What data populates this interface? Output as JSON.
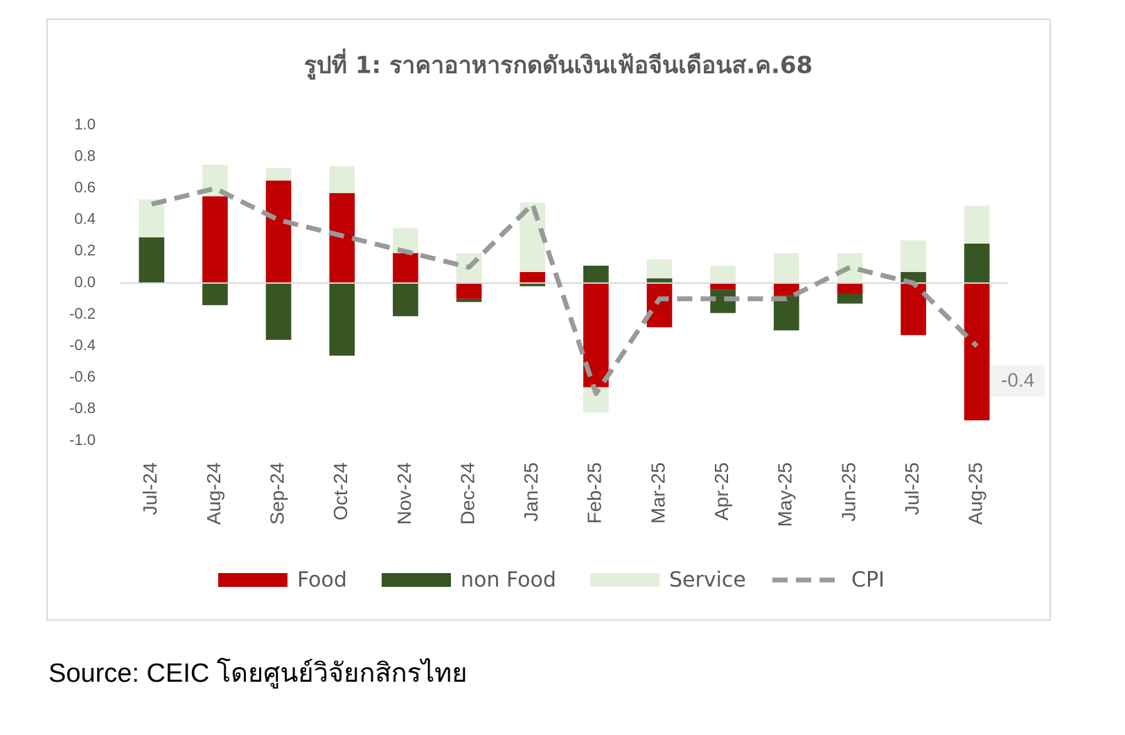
{
  "chart_data": {
    "type": "stacked-bar-line",
    "title": "รูปที่ 1: ราคาอาหารกดดันเงินเฟ้อจีนเดือนส.ค.68",
    "source": "Source: CEIC โดยศูนย์วิจัยกสิกรไทย",
    "categories": [
      "Jul-24",
      "Aug-24",
      "Sep-24",
      "Oct-24",
      "Nov-24",
      "Dec-24",
      "Jan-25",
      "Feb-25",
      "Mar-25",
      "Apr-25",
      "May-25",
      "Jun-25",
      "Jul-25",
      "Aug-25"
    ],
    "series": [
      {
        "name": "Food",
        "type": "bar",
        "color": "#c00000",
        "values": [
          0,
          0.55,
          0.65,
          0.57,
          0.19,
          -0.1,
          0.07,
          -0.66,
          -0.28,
          -0.04,
          -0.08,
          -0.07,
          -0.33,
          -0.87
        ]
      },
      {
        "name": "non Food",
        "type": "bar",
        "color": "#375623",
        "values": [
          0.29,
          -0.14,
          -0.36,
          -0.46,
          -0.21,
          -0.02,
          -0.02,
          0.11,
          0.03,
          -0.15,
          -0.22,
          -0.06,
          0.07,
          0.25
        ]
      },
      {
        "name": "Service",
        "type": "bar",
        "color": "#e2efda",
        "values": [
          0.24,
          0.2,
          0.08,
          0.17,
          0.16,
          0.19,
          0.44,
          -0.16,
          0.12,
          0.11,
          0.19,
          0.19,
          0.2,
          0.24
        ]
      },
      {
        "name": "CPI",
        "type": "line",
        "color": "#999999",
        "dashed": true,
        "values": [
          0.5,
          0.6,
          0.4,
          0.3,
          0.2,
          0.1,
          0.5,
          -0.7,
          -0.1,
          -0.1,
          -0.1,
          0.1,
          0,
          -0.4
        ],
        "value_labels": [
          null,
          null,
          null,
          null,
          null,
          null,
          null,
          null,
          null,
          null,
          null,
          null,
          null,
          "-0.4"
        ]
      }
    ],
    "ylim": [
      -1,
      1
    ],
    "yticks": [
      {
        "value": -1,
        "label": "-1.0"
      },
      -0.8,
      -0.6,
      -0.4,
      -0.2,
      {
        "value": 0,
        "label": "0.0"
      },
      0.2,
      0.4,
      0.6,
      0.8,
      {
        "value": 1,
        "label": "1.0"
      }
    ],
    "grid": false,
    "legend": "bottom"
  }
}
